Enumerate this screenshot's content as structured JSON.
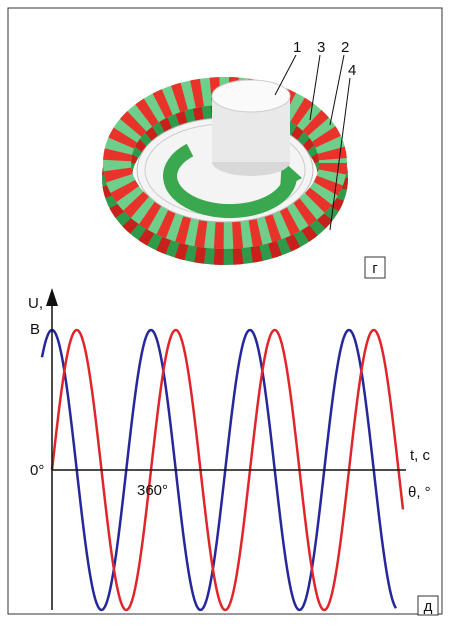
{
  "figure_g": {
    "labels": [
      "1",
      "3",
      "2",
      "4"
    ],
    "panel_label": "г"
  },
  "figure_d": {
    "y_axis_label_1": "U,",
    "y_axis_label_2": "В",
    "x_axis_label_1": "t, c",
    "x_axis_label_2": "θ, °",
    "origin_label": "0°",
    "tick_label": "360°",
    "panel_label": "д"
  }
}
